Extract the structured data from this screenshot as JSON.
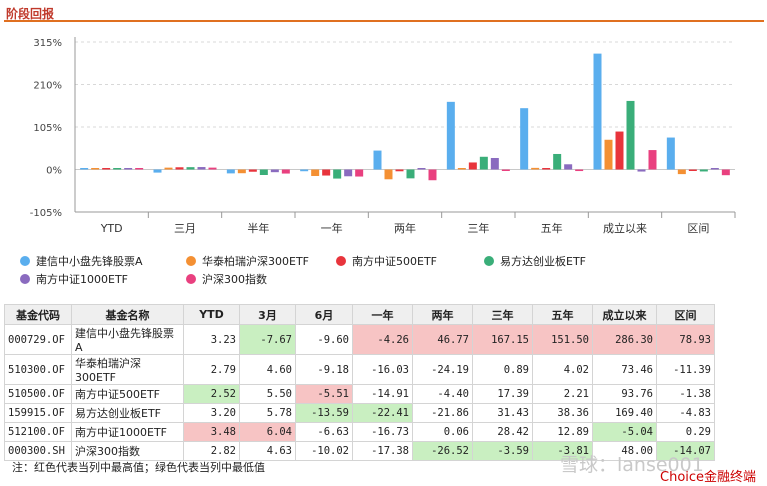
{
  "section_title": "阶段回报",
  "chart_data": {
    "type": "bar",
    "ylim": [
      -105,
      315
    ],
    "yticks": [
      "315%",
      "210%",
      "105%",
      "0%",
      "-105%"
    ],
    "ytick_values": [
      315,
      210,
      105,
      0,
      -105
    ],
    "categories": [
      "YTD",
      "三月",
      "半年",
      "一年",
      "两年",
      "三年",
      "五年",
      "成立以来",
      "区间"
    ],
    "legend_position": "bottom",
    "grid": true,
    "series": [
      {
        "name": "建信中小盘先锋股票A",
        "color": "#5aaeee",
        "values": [
          3.23,
          -7.67,
          -9.6,
          -4.26,
          46.77,
          167.15,
          151.5,
          286.3,
          78.93
        ]
      },
      {
        "name": "华泰柏瑞沪深300ETF",
        "color": "#f49033",
        "values": [
          2.79,
          4.6,
          -9.18,
          -16.03,
          -24.19,
          0.89,
          4.02,
          73.46,
          -11.39
        ]
      },
      {
        "name": "南方中证500ETF",
        "color": "#e8343c",
        "values": [
          2.52,
          5.5,
          -5.51,
          -14.91,
          -4.4,
          17.39,
          2.21,
          93.76,
          -1.38
        ]
      },
      {
        "name": "易方达创业板ETF",
        "color": "#3aae79",
        "values": [
          3.2,
          5.78,
          -13.59,
          -22.41,
          -21.86,
          31.43,
          38.36,
          169.4,
          -4.83
        ]
      },
      {
        "name": "南方中证1000ETF",
        "color": "#8a6bbf",
        "values": [
          3.48,
          6.04,
          -6.63,
          -16.73,
          0.06,
          28.42,
          12.89,
          -5.04,
          0.29
        ]
      },
      {
        "name": "沪深300指数",
        "color": "#e9407f",
        "values": [
          2.82,
          4.63,
          -10.02,
          -17.38,
          -26.52,
          -3.59,
          -3.81,
          48.0,
          -14.07
        ]
      }
    ]
  },
  "table": {
    "headers": [
      "基金代码",
      "基金名称",
      "YTD",
      "3月",
      "6月",
      "一年",
      "两年",
      "三年",
      "五年",
      "成立以来",
      "区间"
    ],
    "rows": [
      [
        "000729.OF",
        "建信中小盘先锋股票A",
        "3.23",
        "-7.67",
        "-9.60",
        "-4.26",
        "46.77",
        "167.15",
        "151.50",
        "286.30",
        "78.93"
      ],
      [
        "510300.OF",
        "华泰柏瑞沪深300ETF",
        "2.79",
        "4.60",
        "-9.18",
        "-16.03",
        "-24.19",
        "0.89",
        "4.02",
        "73.46",
        "-11.39"
      ],
      [
        "510500.OF",
        "南方中证500ETF",
        "2.52",
        "5.50",
        "-5.51",
        "-14.91",
        "-4.40",
        "17.39",
        "2.21",
        "93.76",
        "-1.38"
      ],
      [
        "159915.OF",
        "易方达创业板ETF",
        "3.20",
        "5.78",
        "-13.59",
        "-22.41",
        "-21.86",
        "31.43",
        "38.36",
        "169.40",
        "-4.83"
      ],
      [
        "512100.OF",
        "南方中证1000ETF",
        "3.48",
        "6.04",
        "-6.63",
        "-16.73",
        "0.06",
        "28.42",
        "12.89",
        "-5.04",
        "0.29"
      ],
      [
        "000300.SH",
        "沪深300指数",
        "2.82",
        "4.63",
        "-10.02",
        "-17.38",
        "-26.52",
        "-3.59",
        "-3.81",
        "48.00",
        "-14.07"
      ]
    ],
    "highlight": [
      [
        "",
        "",
        "",
        "lo",
        "",
        "hi",
        "hi",
        "hi",
        "hi",
        "hi",
        "hi"
      ],
      [
        "",
        "",
        "",
        "",
        "",
        "",
        "",
        "",
        "",
        "",
        ""
      ],
      [
        "",
        "",
        "lo",
        "",
        "hi",
        "",
        "",
        "",
        "",
        "",
        ""
      ],
      [
        "",
        "",
        "",
        "",
        "lo",
        "lo",
        "",
        "",
        "",
        "",
        ""
      ],
      [
        "",
        "",
        "hi",
        "hi",
        "",
        "",
        "",
        "",
        "",
        "lo",
        ""
      ],
      [
        "",
        "",
        "",
        "",
        "",
        "",
        "lo",
        "lo",
        "lo",
        "",
        "lo"
      ]
    ]
  },
  "note": "注：红色代表当列中最高值；绿色代表当列中最低值",
  "watermark": "雪球：lanse001",
  "watermark_brand": "Choice金融终端"
}
